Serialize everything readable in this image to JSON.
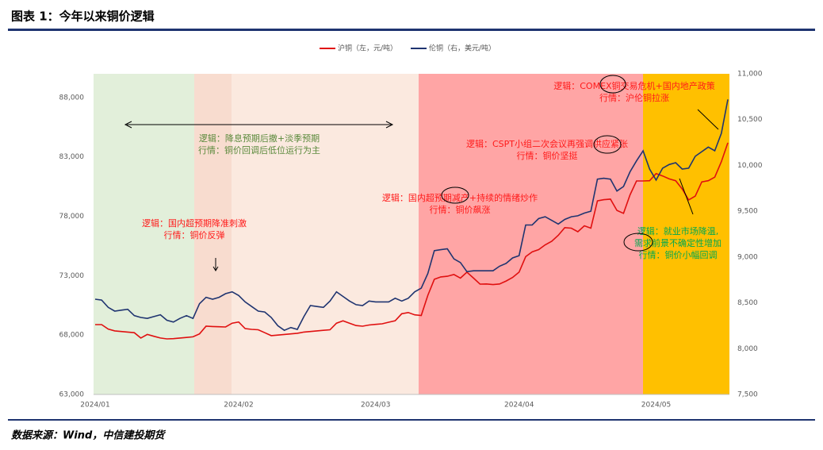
{
  "header": {
    "title": "图表 1：今年以来铜价逻辑"
  },
  "chart_data": {
    "type": "line",
    "categories": [
      "2024/01",
      null,
      null,
      null,
      null,
      null,
      null,
      null,
      null,
      null,
      null,
      null,
      null,
      null,
      null,
      null,
      null,
      null,
      null,
      null,
      null,
      null,
      "2024/02",
      null,
      null,
      null,
      null,
      null,
      null,
      null,
      null,
      null,
      null,
      null,
      null,
      null,
      null,
      null,
      null,
      null,
      null,
      null,
      null,
      "2024/03",
      null,
      null,
      null,
      null,
      null,
      null,
      null,
      null,
      null,
      null,
      null,
      null,
      null,
      null,
      null,
      null,
      null,
      null,
      null,
      null,
      null,
      "2024/04",
      null,
      null,
      null,
      null,
      null,
      null,
      null,
      null,
      null,
      null,
      null,
      null,
      null,
      null,
      null,
      null,
      null,
      null,
      null,
      null,
      "2024/05",
      null,
      null,
      null,
      null,
      null,
      null,
      null,
      null,
      null,
      null,
      null
    ],
    "series": [
      {
        "name": "沪铜（左，元/吨）",
        "color": "#e01010",
        "values": [
          68880,
          68880,
          68500,
          68350,
          68300,
          68250,
          68200,
          67750,
          68050,
          67900,
          67750,
          67680,
          67700,
          67750,
          67800,
          67850,
          68100,
          68750,
          68720,
          68700,
          68680,
          69000,
          69100,
          68550,
          68480,
          68450,
          68200,
          67950,
          68000,
          68050,
          68100,
          68150,
          68250,
          68300,
          68350,
          68400,
          68450,
          69000,
          69200,
          69000,
          68800,
          68750,
          68850,
          68900,
          68950,
          69080,
          69200,
          69800,
          69900,
          69700,
          69650,
          71350,
          72700,
          72900,
          72950,
          73100,
          72800,
          73300,
          72800,
          72290,
          72300,
          72250,
          72300,
          72550,
          72850,
          73300,
          74600,
          75000,
          75200,
          75600,
          75900,
          76400,
          77050,
          77000,
          76700,
          77200,
          77000,
          79300,
          79400,
          79450,
          78500,
          78250,
          79800,
          80980,
          80980,
          81000,
          81600,
          81400,
          81150,
          81000,
          80300,
          79380,
          79700,
          80900,
          81000,
          81300,
          82600,
          84190
        ]
      },
      {
        "name": "伦铜（右，美元/吨）",
        "color": "#1f3470",
        "axis": "y2",
        "values": [
          8540,
          8530,
          8450,
          8410,
          8420,
          8430,
          8360,
          8340,
          8330,
          8350,
          8370,
          8310,
          8290,
          8330,
          8360,
          8330,
          8490,
          8560,
          8540,
          8560,
          8600,
          8620,
          8580,
          8510,
          8460,
          8410,
          8400,
          8340,
          8250,
          8200,
          8230,
          8210,
          8350,
          8470,
          8460,
          8450,
          8520,
          8620,
          8570,
          8520,
          8480,
          8470,
          8520,
          8510,
          8510,
          8510,
          8550,
          8520,
          8550,
          8620,
          8660,
          8820,
          9070,
          9080,
          9090,
          8980,
          8940,
          8840,
          8850,
          8850,
          8850,
          8850,
          8900,
          8930,
          8990,
          9015,
          9350,
          9350,
          9420,
          9440,
          9400,
          9360,
          9410,
          9440,
          9450,
          9480,
          9500,
          9850,
          9860,
          9850,
          9720,
          9770,
          9930,
          10050,
          10160,
          9960,
          9840,
          9970,
          10010,
          10030,
          9960,
          9970,
          10100,
          10150,
          10200,
          10160,
          10350,
          10720
        ]
      }
    ],
    "ylim": [
      63000,
      90000
    ],
    "yticks": [
      {
        "value": 63000,
        "label": "63,000"
      },
      {
        "value": 68000,
        "label": "68,000"
      },
      {
        "value": 73000,
        "label": "73,000"
      },
      {
        "value": 78000,
        "label": "78,000"
      },
      {
        "value": 83000,
        "label": "83,000"
      },
      {
        "value": 88000,
        "label": "88,000"
      }
    ],
    "y2lim": [
      7500,
      11000
    ],
    "y2ticks": [
      {
        "value": 7500,
        "label": "7,500"
      },
      {
        "value": 8000,
        "label": "8,000"
      },
      {
        "value": 8500,
        "label": "8,500"
      },
      {
        "value": 9000,
        "label": "9,000"
      },
      {
        "value": 9500,
        "label": "9,500"
      },
      {
        "value": 10000,
        "label": "10,000"
      },
      {
        "value": 10500,
        "label": "10,500"
      },
      {
        "value": 11000,
        "label": "11,000"
      }
    ],
    "grid": false,
    "legend": "top",
    "annotations": [
      {
        "lines": [
          "逻辑：国内超预期降准刺激",
          "行情：铜价反弹"
        ],
        "color": "#ff1a1a"
      },
      {
        "lines": [
          "逻辑：降息预期后撤+淡季预期",
          "行情：铜价回调后低位运行为主"
        ],
        "color": "#5b8a3c"
      },
      {
        "lines": [
          "逻辑：国内超预期减产+持续的情绪炒作",
          "行情：铜价飙涨"
        ],
        "color": "#ff1a1a"
      },
      {
        "lines": [
          "逻辑：CSPT小组二次会议再强调供应紧张",
          "行情：铜价坚挺"
        ],
        "color": "#ff1a1a"
      },
      {
        "lines": [
          "逻辑：COMEX铜交易危机+国内地产政策",
          "行情：沪伦铜拉涨"
        ],
        "color": "#ff1a1a"
      },
      {
        "lines": [
          "逻辑：就业市场降温,",
          "需求前景不确定性增加",
          "行情：铜价小幅回调"
        ],
        "color": "#00a84f"
      }
    ]
  },
  "footer": {
    "source": "数据来源：Wind，中信建投期货"
  }
}
